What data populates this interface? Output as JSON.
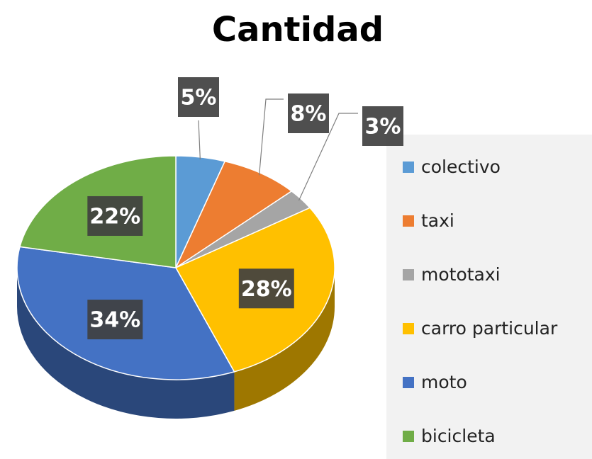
{
  "chart_data": {
    "type": "pie",
    "title": "Cantidad",
    "categories": [
      "colectivo",
      "taxi",
      "mototaxi",
      "carro particular",
      "moto",
      "bicicleta"
    ],
    "values": [
      5,
      8,
      3,
      28,
      34,
      22
    ],
    "value_labels": [
      "5%",
      "8%",
      "3%",
      "28%",
      "34%",
      "22%"
    ],
    "colors": [
      "#5b9bd5",
      "#ed7d31",
      "#a5a5a5",
      "#ffc000",
      "#4472c4",
      "#70ad47"
    ],
    "legend": "right"
  }
}
